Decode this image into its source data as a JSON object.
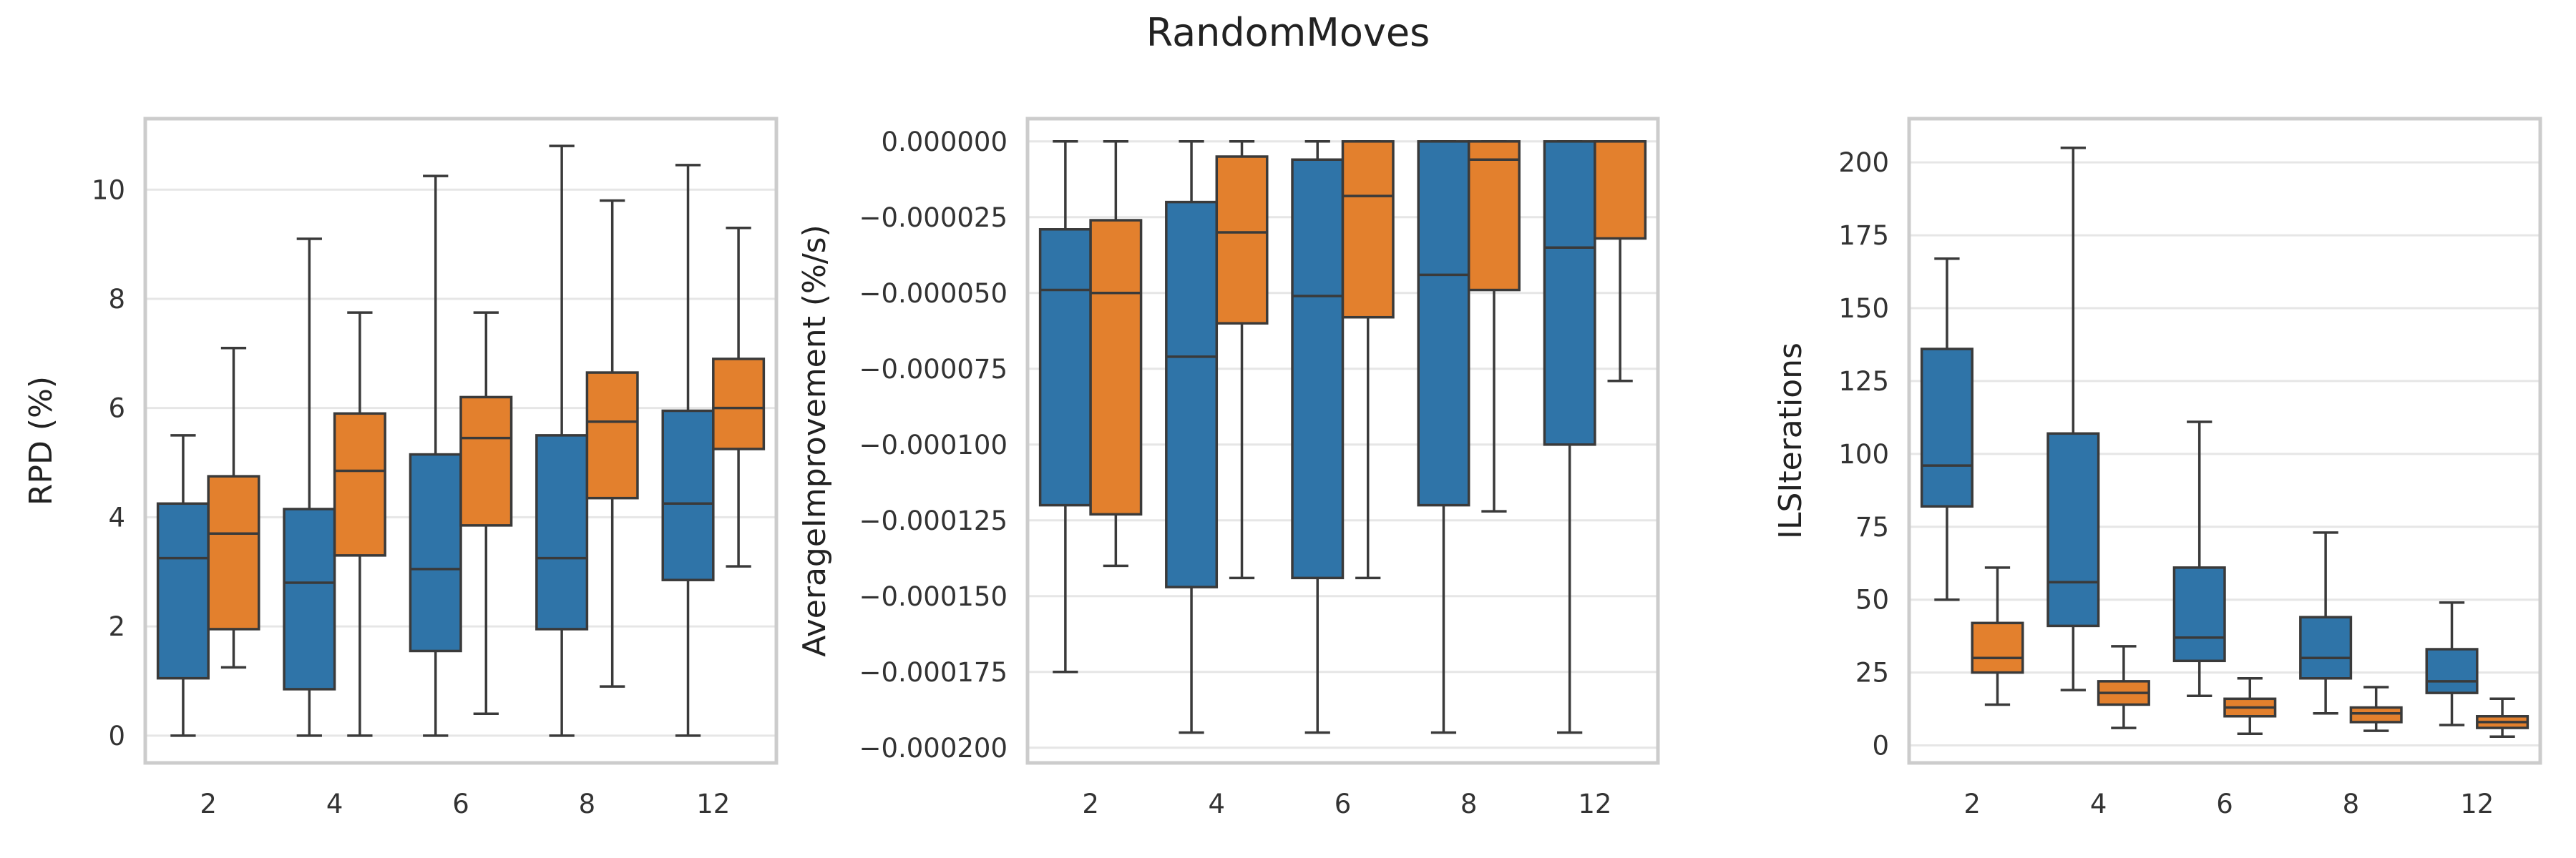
{
  "title": "RandomMoves",
  "colors": {
    "series_a": "#2f74a8",
    "series_b": "#e3802d",
    "line": "#3a3a3a",
    "grid": "#e6e6e6",
    "frame": "#cccccc"
  },
  "chart_data": [
    {
      "type": "box",
      "ylabel": "RPD (%)",
      "categories": [
        "2",
        "4",
        "6",
        "8",
        "12"
      ],
      "ylim": [
        -0.5,
        11.3
      ],
      "yticks": [
        0,
        2,
        4,
        6,
        8,
        10
      ],
      "ytick_labels": [
        "0",
        "2",
        "4",
        "6",
        "8",
        "10"
      ],
      "grid": true,
      "series": [
        {
          "boxes": [
            {
              "min": 0,
              "q1": 1.05,
              "median": 3.25,
              "q3": 4.25,
              "max": 5.5
            },
            {
              "min": 0,
              "q1": 0.85,
              "median": 2.8,
              "q3": 4.15,
              "max": 9.1
            },
            {
              "min": 0,
              "q1": 1.55,
              "median": 3.05,
              "q3": 5.15,
              "max": 10.25
            },
            {
              "min": 0,
              "q1": 1.95,
              "median": 3.25,
              "q3": 5.5,
              "max": 10.8
            },
            {
              "min": 0,
              "q1": 2.85,
              "median": 4.25,
              "q3": 5.95,
              "max": 10.45
            }
          ]
        },
        {
          "boxes": [
            {
              "min": 1.25,
              "q1": 1.95,
              "median": 3.7,
              "q3": 4.75,
              "max": 7.1
            },
            {
              "min": 0,
              "q1": 3.3,
              "median": 4.85,
              "q3": 5.9,
              "max": 7.75
            },
            {
              "min": 0.4,
              "q1": 3.85,
              "median": 5.45,
              "q3": 6.2,
              "max": 7.75
            },
            {
              "min": 0.9,
              "q1": 4.35,
              "median": 5.75,
              "q3": 6.65,
              "max": 9.8
            },
            {
              "min": 3.1,
              "q1": 5.25,
              "median": 6.0,
              "q3": 6.9,
              "max": 9.3
            }
          ]
        }
      ]
    },
    {
      "type": "box",
      "ylabel": "AverageImprovement (%/s)",
      "categories": [
        "2",
        "4",
        "6",
        "8",
        "12"
      ],
      "ylim": [
        -0.000205,
        7.5e-06
      ],
      "yticks": [
        0,
        -2.5e-05,
        -5e-05,
        -7.5e-05,
        -0.0001,
        -0.000125,
        -0.00015,
        -0.000175,
        -0.0002
      ],
      "ytick_labels": [
        "0.000000",
        "−0.000025",
        "−0.000050",
        "−0.000075",
        "−0.000100",
        "−0.000125",
        "−0.000150",
        "−0.000175",
        "−0.000200"
      ],
      "grid": true,
      "series": [
        {
          "boxes": [
            {
              "min": -0.000175,
              "q1": -0.00012,
              "median": -4.9e-05,
              "q3": -2.9e-05,
              "max": 0
            },
            {
              "min": -0.000195,
              "q1": -0.000147,
              "median": -7.1e-05,
              "q3": -2e-05,
              "max": 0
            },
            {
              "min": -0.000195,
              "q1": -0.000144,
              "median": -5.1e-05,
              "q3": -6e-06,
              "max": 0
            },
            {
              "min": -0.000195,
              "q1": -0.00012,
              "median": -4.4e-05,
              "q3": 0,
              "max": 0
            },
            {
              "min": -0.000195,
              "q1": -0.0001,
              "median": -3.5e-05,
              "q3": 0,
              "max": 0
            }
          ]
        },
        {
          "boxes": [
            {
              "min": -0.00014,
              "q1": -0.000123,
              "median": -5e-05,
              "q3": -2.6e-05,
              "max": 0
            },
            {
              "min": -0.000144,
              "q1": -6e-05,
              "median": -3e-05,
              "q3": -5e-06,
              "max": 0
            },
            {
              "min": -0.000144,
              "q1": -5.8e-05,
              "median": -1.8e-05,
              "q3": 0,
              "max": 0
            },
            {
              "min": -0.000122,
              "q1": -4.9e-05,
              "median": -6e-06,
              "q3": 0,
              "max": 0
            },
            {
              "min": -7.9e-05,
              "q1": -3.2e-05,
              "median": 0,
              "q3": 0,
              "max": 0
            }
          ]
        }
      ]
    },
    {
      "type": "box",
      "ylabel": "ILSIterations",
      "categories": [
        "2",
        "4",
        "6",
        "8",
        "12"
      ],
      "ylim": [
        -6,
        215
      ],
      "yticks": [
        0,
        25,
        50,
        75,
        100,
        125,
        150,
        175,
        200
      ],
      "ytick_labels": [
        "0",
        "25",
        "50",
        "75",
        "100",
        "125",
        "150",
        "175",
        "200"
      ],
      "grid": true,
      "series": [
        {
          "boxes": [
            {
              "min": 50,
              "q1": 82,
              "median": 96,
              "q3": 136,
              "max": 167
            },
            {
              "min": 19,
              "q1": 41,
              "median": 56,
              "q3": 107,
              "max": 205
            },
            {
              "min": 17,
              "q1": 29,
              "median": 37,
              "q3": 61,
              "max": 111
            },
            {
              "min": 11,
              "q1": 23,
              "median": 30,
              "q3": 44,
              "max": 73
            },
            {
              "min": 7,
              "q1": 18,
              "median": 22,
              "q3": 33,
              "max": 49
            }
          ]
        },
        {
          "boxes": [
            {
              "min": 14,
              "q1": 25,
              "median": 30,
              "q3": 42,
              "max": 61
            },
            {
              "min": 6,
              "q1": 14,
              "median": 18,
              "q3": 22,
              "max": 34
            },
            {
              "min": 4,
              "q1": 10,
              "median": 13,
              "q3": 16,
              "max": 23
            },
            {
              "min": 5,
              "q1": 8,
              "median": 11,
              "q3": 13,
              "max": 20
            },
            {
              "min": 3,
              "q1": 6,
              "median": 8,
              "q3": 10,
              "max": 16
            }
          ]
        }
      ]
    }
  ]
}
